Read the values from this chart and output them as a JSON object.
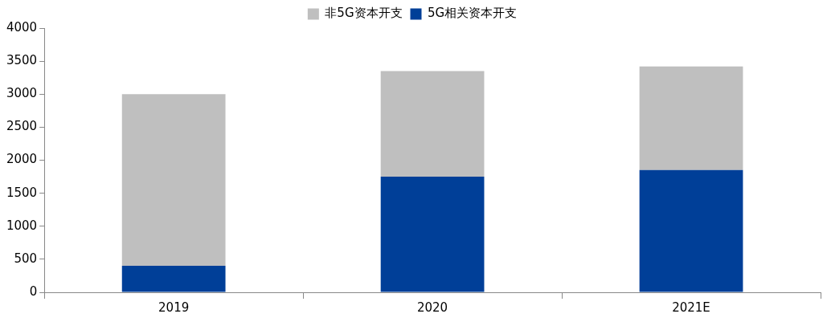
{
  "chart_data": {
    "type": "bar",
    "stacked": true,
    "categories": [
      "2019",
      "2020",
      "2021E"
    ],
    "series": [
      {
        "name": "5G相关资本开支",
        "color": "#003f98",
        "values": [
          400,
          1750,
          1850
        ]
      },
      {
        "name": "非5G资本开支",
        "color": "#bfbfbf",
        "values": [
          2600,
          1600,
          1570
        ]
      }
    ],
    "ylim": [
      0,
      4000
    ],
    "yticks": [
      0,
      500,
      1000,
      1500,
      2000,
      2500,
      3000,
      3500,
      4000
    ],
    "grid": false,
    "legend": "top"
  }
}
